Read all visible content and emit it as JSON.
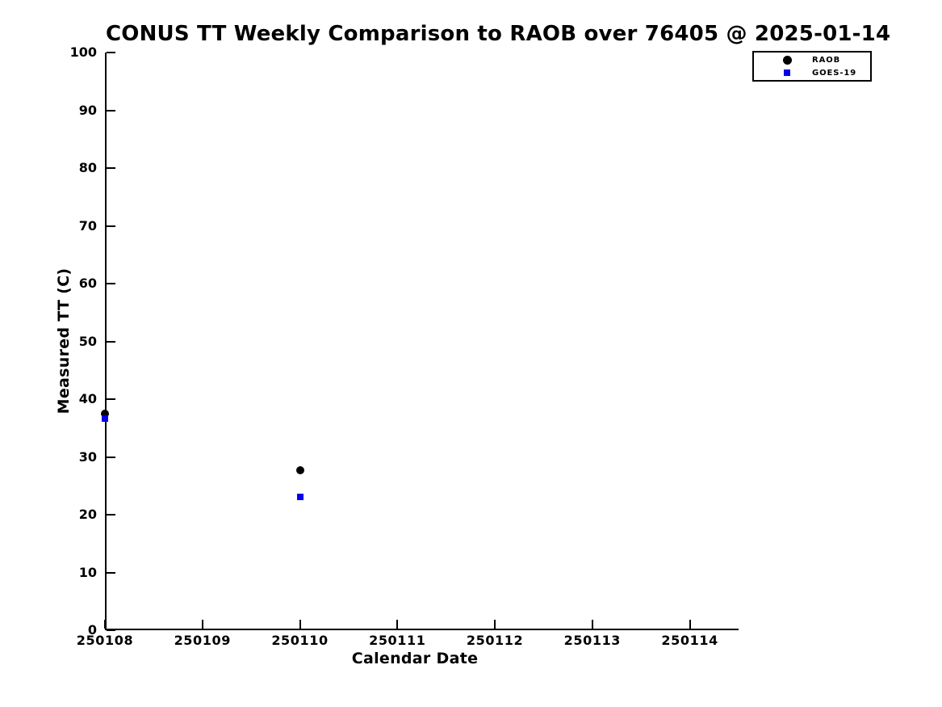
{
  "figure": {
    "background": "#ffffff",
    "axis_color": "#000000",
    "text_color": "#000000"
  },
  "chart_data": {
    "type": "scatter",
    "title": "CONUS TT Weekly Comparison to RAOB over 76405 @ 2025-01-14",
    "xlabel": "Calendar Date",
    "ylabel": "Measured TT (C)",
    "xlim": [
      250108,
      250114.5
    ],
    "ylim": [
      0,
      100
    ],
    "xticks": [
      250108,
      250109,
      250110,
      250111,
      250112,
      250113,
      250114
    ],
    "xtick_labels": [
      "250108",
      "250109",
      "250110",
      "250111",
      "250112",
      "250113",
      "250114"
    ],
    "yticks": [
      0,
      10,
      20,
      30,
      40,
      50,
      60,
      70,
      80,
      90,
      100
    ],
    "ytick_labels": [
      "0",
      "10",
      "20",
      "30",
      "40",
      "50",
      "60",
      "70",
      "80",
      "90",
      "100"
    ],
    "grid": false,
    "legend": {
      "position": "upper-right",
      "entries": [
        "RAOB",
        "GOES-19"
      ]
    },
    "series": [
      {
        "name": "RAOB",
        "marker": "circle",
        "color": "#000000",
        "points": [
          {
            "x": 250108,
            "y": 37.5
          },
          {
            "x": 250110,
            "y": 27.7
          }
        ]
      },
      {
        "name": "GOES-19",
        "marker": "square",
        "color": "#0000ee",
        "points": [
          {
            "x": 250108,
            "y": 36.7
          },
          {
            "x": 250110,
            "y": 23.1
          }
        ]
      }
    ]
  }
}
